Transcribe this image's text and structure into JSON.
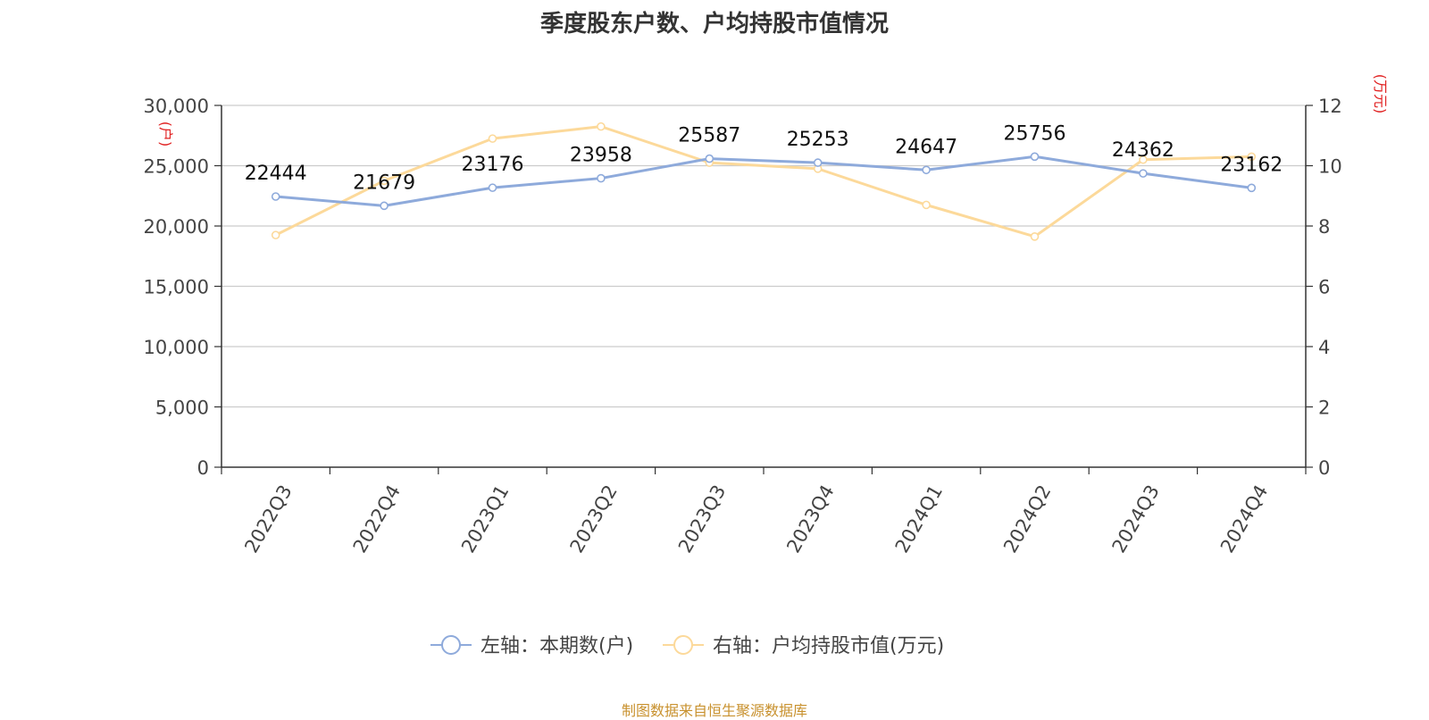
{
  "title": "季度股东户数、户均持股市值情况",
  "source": "制图数据来自恒生聚源数据库",
  "chart_data": {
    "type": "line",
    "categories": [
      "2022Q3",
      "2022Q4",
      "2023Q1",
      "2023Q2",
      "2023Q3",
      "2023Q4",
      "2024Q1",
      "2024Q2",
      "2024Q3",
      "2024Q4"
    ],
    "left_axis": {
      "unit": "(户)",
      "ylim": [
        0,
        30000
      ],
      "ticks": [
        "0",
        "5,000",
        "10,000",
        "15,000",
        "20,000",
        "25,000",
        "30,000"
      ]
    },
    "right_axis": {
      "unit": "(万元)",
      "ylim": [
        0,
        12
      ],
      "ticks": [
        "0",
        "2",
        "4",
        "6",
        "8",
        "10",
        "12"
      ]
    },
    "grid": true,
    "legend_position": "bottom-center",
    "series": [
      {
        "name": "左轴：本期数(户)",
        "axis": "left",
        "color": "#8eaadb",
        "values": [
          22444,
          21679,
          23176,
          23958,
          25587,
          25253,
          24647,
          25756,
          24362,
          23162
        ],
        "labels": [
          "22444",
          "21679",
          "23176",
          "23958",
          "25587",
          "25253",
          "24647",
          "25756",
          "24362",
          "23162"
        ]
      },
      {
        "name": "右轴：户均持股市值(万元)",
        "axis": "right",
        "color": "#fcd99a",
        "values": [
          7.7,
          9.5,
          10.9,
          11.3,
          10.1,
          9.9,
          8.7,
          7.65,
          10.2,
          10.3
        ]
      }
    ]
  }
}
